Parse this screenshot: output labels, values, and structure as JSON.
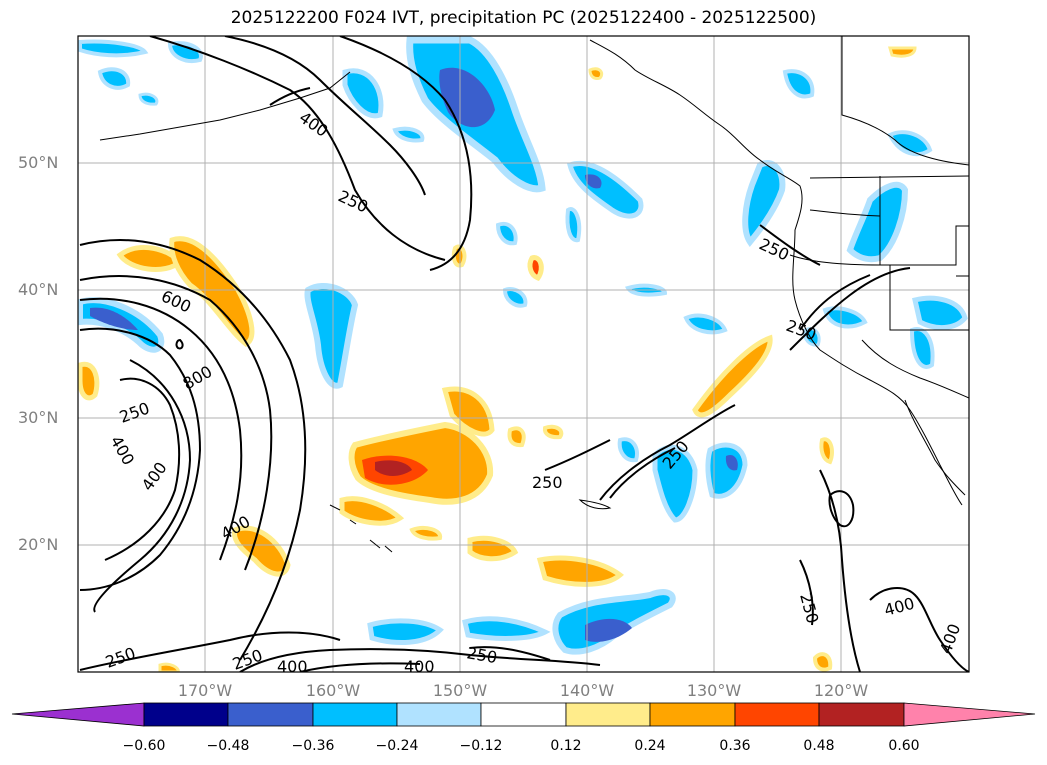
{
  "title": "2025122200 F024 IVT, precipitation PC (2025122400 - 2025122500)",
  "map": {
    "lat_labels": [
      "50°N",
      "40°N",
      "30°N",
      "20°N"
    ],
    "lon_labels": [
      "170°W",
      "160°W",
      "150°W",
      "140°W",
      "130°W",
      "120°W"
    ],
    "contour_labels": [
      "400",
      "250",
      "600",
      "800",
      "250",
      "400",
      "400",
      "400",
      "250",
      "250",
      "250",
      "250",
      "250",
      "250",
      "400",
      "250",
      "400",
      "400",
      "250",
      "400"
    ]
  },
  "colorbar": {
    "ticks": [
      "−0.60",
      "−0.48",
      "−0.36",
      "−0.24",
      "−0.12",
      "0.12",
      "0.24",
      "0.36",
      "0.48",
      "0.60"
    ],
    "colors": [
      "#9b30d0",
      "#00008b",
      "#3a5fcd",
      "#00bfff",
      "#b0e2ff",
      "#ffffff",
      "#ffec8b",
      "#ffa500",
      "#ff4500",
      "#b22222",
      "#ff82ab"
    ]
  }
}
